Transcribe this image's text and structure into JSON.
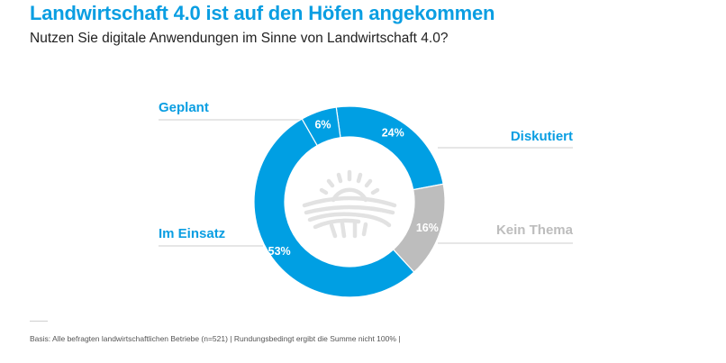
{
  "header": {
    "title": "Landwirtschaft 4.0 ist auf den Höfen angekommen",
    "subtitle": "Nutzen Sie digitale Anwendungen im Sinne von Landwirtschaft 4.0?"
  },
  "chart_data": {
    "type": "pie",
    "variant": "donut",
    "title": "Landwirtschaft 4.0 ist auf den Höfen angekommen",
    "subtitle": "Nutzen Sie digitale Anwendungen im Sinne von Landwirtschaft 4.0?",
    "unit": "%",
    "center_icon": "sun-over-field-icon",
    "slices": [
      {
        "label": "Diskutiert",
        "value": 24,
        "value_label": "24%",
        "color": "#009fe3",
        "label_color": "#0a9ee2"
      },
      {
        "label": "Kein Thema",
        "value": 16,
        "value_label": "16%",
        "color": "#bdbdbd",
        "label_color": "#bdbdbd"
      },
      {
        "label": "Im Einsatz",
        "value": 53,
        "value_label": "53%",
        "color": "#009fe3",
        "label_color": "#0a9ee2"
      },
      {
        "label": "Geplant",
        "value": 6,
        "value_label": "6%",
        "color": "#009fe3",
        "label_color": "#0a9ee2"
      }
    ],
    "footnote": "Basis: Alle befragten landwirtschaftlichen Betriebe (n=521) | Rundungsbedingt ergibt die Summe nicht 100% |"
  },
  "colors": {
    "accent": "#009fe3",
    "muted": "#bdbdbd",
    "icon": "#e2e2e2"
  }
}
